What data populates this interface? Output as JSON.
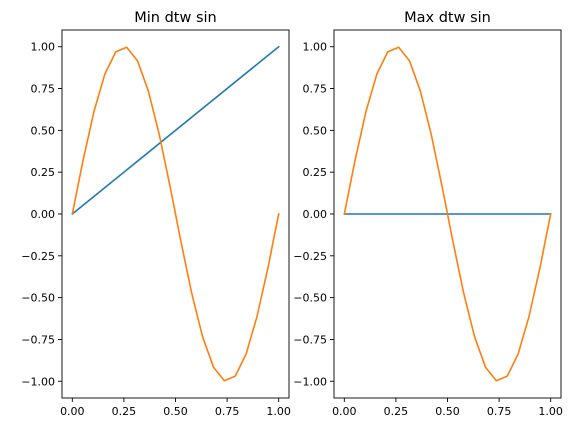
{
  "chart_data": [
    {
      "type": "line",
      "title": "Min dtw sin",
      "xlabel": "",
      "ylabel": "",
      "xlim": [
        -0.05,
        1.05
      ],
      "ylim": [
        -1.1,
        1.1
      ],
      "grid": false,
      "xticks": [
        0.0,
        0.25,
        0.5,
        0.75,
        1.0
      ],
      "xtick_labels": [
        "0.00",
        "0.25",
        "0.50",
        "0.75",
        "1.00"
      ],
      "yticks": [
        1.0,
        0.75,
        0.5,
        0.25,
        0.0,
        -0.25,
        -0.5,
        -0.75,
        -1.0
      ],
      "ytick_labels": [
        "1.00",
        "0.75",
        "0.50",
        "0.25",
        "0.00",
        "−0.25",
        "−0.50",
        "−0.75",
        "−1.00"
      ],
      "series": [
        {
          "color": "#1f77b4",
          "x": [
            0,
            1
          ],
          "y": [
            0,
            1
          ]
        },
        {
          "color": "#ff7f0e",
          "x": [
            0,
            0.0526,
            0.1053,
            0.1579,
            0.2105,
            0.2632,
            0.3158,
            0.3684,
            0.4211,
            0.4737,
            0.5263,
            0.5789,
            0.6316,
            0.6842,
            0.7368,
            0.7895,
            0.8421,
            0.8947,
            0.9474,
            1.0
          ],
          "y": [
            0,
            0.3247,
            0.6142,
            0.8372,
            0.9694,
            0.9966,
            0.9158,
            0.7357,
            0.4759,
            0.1646,
            -0.1646,
            -0.4759,
            -0.7357,
            -0.9158,
            -0.9966,
            -0.9694,
            -0.8372,
            -0.6142,
            -0.3247,
            0
          ]
        }
      ]
    },
    {
      "type": "line",
      "title": "Max dtw sin",
      "xlabel": "",
      "ylabel": "",
      "xlim": [
        -0.05,
        1.05
      ],
      "ylim": [
        -1.1,
        1.1
      ],
      "grid": false,
      "xticks": [
        0.0,
        0.25,
        0.5,
        0.75,
        1.0
      ],
      "xtick_labels": [
        "0.00",
        "0.25",
        "0.50",
        "0.75",
        "1.00"
      ],
      "yticks": [
        1.0,
        0.75,
        0.5,
        0.25,
        0.0,
        -0.25,
        -0.5,
        -0.75,
        -1.0
      ],
      "ytick_labels": [
        "1.00",
        "0.75",
        "0.50",
        "0.25",
        "0.00",
        "−0.25",
        "−0.50",
        "−0.75",
        "−1.00"
      ],
      "series": [
        {
          "color": "#1f77b4",
          "x": [
            0,
            1
          ],
          "y": [
            0,
            0
          ]
        },
        {
          "color": "#ff7f0e",
          "x": [
            0,
            0.0526,
            0.1053,
            0.1579,
            0.2105,
            0.2632,
            0.3158,
            0.3684,
            0.4211,
            0.4737,
            0.5263,
            0.5789,
            0.6316,
            0.6842,
            0.7368,
            0.7895,
            0.8421,
            0.8947,
            0.9474,
            1.0
          ],
          "y": [
            0,
            0.3247,
            0.6142,
            0.8372,
            0.9694,
            0.9966,
            0.9158,
            0.7357,
            0.4759,
            0.1646,
            -0.1646,
            -0.4759,
            -0.7357,
            -0.9158,
            -0.9966,
            -0.9694,
            -0.8372,
            -0.6142,
            -0.3247,
            0
          ]
        }
      ]
    }
  ]
}
